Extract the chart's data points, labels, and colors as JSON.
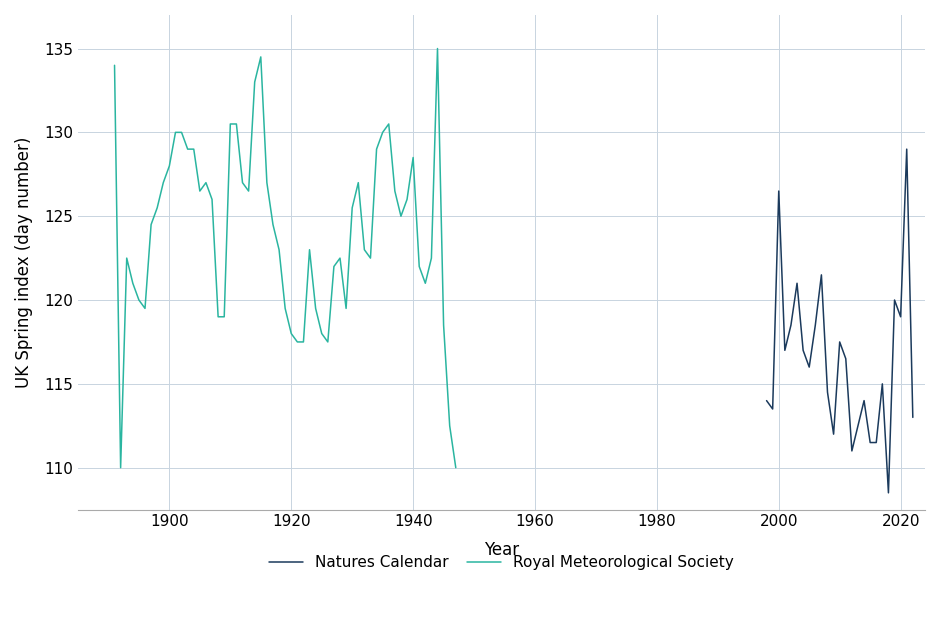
{
  "rms_years": [
    1891,
    1892,
    1893,
    1894,
    1895,
    1896,
    1897,
    1898,
    1899,
    1900,
    1901,
    1902,
    1903,
    1904,
    1905,
    1906,
    1907,
    1908,
    1909,
    1910,
    1911,
    1912,
    1913,
    1914,
    1915,
    1916,
    1917,
    1918,
    1919,
    1920,
    1921,
    1922,
    1923,
    1924,
    1925,
    1926,
    1927,
    1928,
    1929,
    1930,
    1931,
    1932,
    1933,
    1934,
    1935,
    1936,
    1937,
    1938,
    1939,
    1940,
    1941,
    1942,
    1943,
    1944,
    1945,
    1946,
    1947
  ],
  "rms_values": [
    134.0,
    110.0,
    122.5,
    121.0,
    120.0,
    119.5,
    124.5,
    125.5,
    127.0,
    128.0,
    130.0,
    130.0,
    129.0,
    129.0,
    126.5,
    127.0,
    126.0,
    119.0,
    119.0,
    130.5,
    130.5,
    127.0,
    126.5,
    133.0,
    134.5,
    127.0,
    124.5,
    123.0,
    119.5,
    118.0,
    117.5,
    117.5,
    123.0,
    119.5,
    118.0,
    117.5,
    122.0,
    122.5,
    119.5,
    125.5,
    127.0,
    123.0,
    122.5,
    129.0,
    130.0,
    130.5,
    126.5,
    125.0,
    126.0,
    128.5,
    122.0,
    121.0,
    122.5,
    135.0,
    118.5,
    112.5,
    110.0
  ],
  "nc_years": [
    1998,
    1999,
    2000,
    2001,
    2002,
    2003,
    2004,
    2005,
    2006,
    2007,
    2008,
    2009,
    2010,
    2011,
    2012,
    2013,
    2014,
    2015,
    2016,
    2017,
    2018,
    2019,
    2020,
    2021,
    2022
  ],
  "nc_values": [
    114.0,
    113.5,
    126.5,
    117.0,
    118.5,
    121.0,
    117.0,
    116.0,
    118.5,
    121.5,
    114.5,
    112.0,
    117.5,
    116.5,
    111.0,
    112.5,
    114.0,
    111.5,
    111.5,
    115.0,
    108.5,
    120.0,
    119.0,
    129.0,
    113.0
  ],
  "rms_color": "#2ab5a0",
  "nc_color": "#1b3a5c",
  "xlabel": "Year",
  "ylabel": "UK Spring index (day number)",
  "ylim": [
    107.5,
    137
  ],
  "yticks": [
    110,
    115,
    120,
    125,
    130,
    135
  ],
  "xticks": [
    1900,
    1920,
    1940,
    1960,
    1980,
    2000,
    2020
  ],
  "xlim": [
    1885,
    2024
  ],
  "legend_labels": [
    "Natures Calendar",
    "Royal Meteorological Society"
  ],
  "legend_colors": [
    "#1b3a5c",
    "#2ab5a0"
  ],
  "background_color": "#ffffff",
  "grid_color": "#c8d4e0",
  "line_width": 1.1,
  "font_size": 11
}
